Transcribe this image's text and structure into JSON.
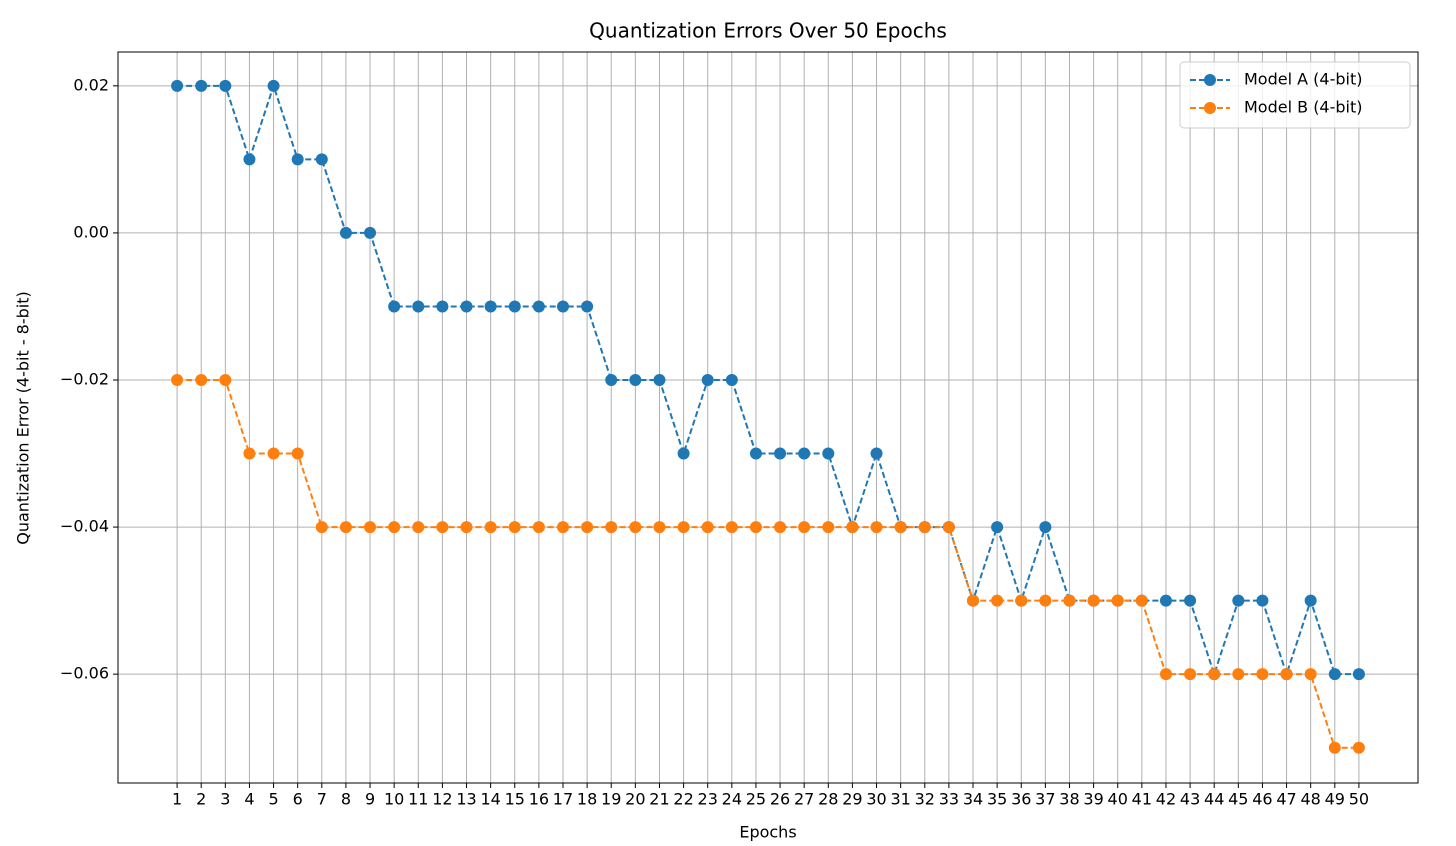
{
  "chart_data": {
    "type": "line",
    "title": "Quantization Errors Over 50 Epochs",
    "xlabel": "Epochs",
    "ylabel": "Quantization Error (4-bit - 8-bit)",
    "x": [
      1,
      2,
      3,
      4,
      5,
      6,
      7,
      8,
      9,
      10,
      11,
      12,
      13,
      14,
      15,
      16,
      17,
      18,
      19,
      20,
      21,
      22,
      23,
      24,
      25,
      26,
      27,
      28,
      29,
      30,
      31,
      32,
      33,
      34,
      35,
      36,
      37,
      38,
      39,
      40,
      41,
      42,
      43,
      44,
      45,
      46,
      47,
      48,
      49,
      50
    ],
    "series": [
      {
        "name": "Model A (4-bit)",
        "color": "#1f77b4",
        "values": [
          0.02,
          0.02,
          0.02,
          0.01,
          0.02,
          0.01,
          0.01,
          0.0,
          0.0,
          -0.01,
          -0.01,
          -0.01,
          -0.01,
          -0.01,
          -0.01,
          -0.01,
          -0.01,
          -0.01,
          -0.02,
          -0.02,
          -0.02,
          -0.03,
          -0.02,
          -0.02,
          -0.03,
          -0.03,
          -0.03,
          -0.03,
          -0.04,
          -0.03,
          -0.04,
          -0.04,
          -0.04,
          -0.05,
          -0.04,
          -0.05,
          -0.04,
          -0.05,
          -0.05,
          -0.05,
          -0.05,
          -0.05,
          -0.05,
          -0.06,
          -0.05,
          -0.05,
          -0.06,
          -0.05,
          -0.06,
          -0.06
        ]
      },
      {
        "name": "Model B (4-bit)",
        "color": "#ff7f0e",
        "values": [
          -0.02,
          -0.02,
          -0.02,
          -0.03,
          -0.03,
          -0.03,
          -0.04,
          -0.04,
          -0.04,
          -0.04,
          -0.04,
          -0.04,
          -0.04,
          -0.04,
          -0.04,
          -0.04,
          -0.04,
          -0.04,
          -0.04,
          -0.04,
          -0.04,
          -0.04,
          -0.04,
          -0.04,
          -0.04,
          -0.04,
          -0.04,
          -0.04,
          -0.04,
          -0.04,
          -0.04,
          -0.04,
          -0.04,
          -0.05,
          -0.05,
          -0.05,
          -0.05,
          -0.05,
          -0.05,
          -0.05,
          -0.05,
          -0.06,
          -0.06,
          -0.06,
          -0.06,
          -0.06,
          -0.06,
          -0.06,
          -0.07,
          -0.07
        ]
      }
    ],
    "xlim": [
      -1.45,
      52.45
    ],
    "ylim": [
      -0.0748,
      0.0246
    ],
    "xticks": [
      1,
      2,
      3,
      4,
      5,
      6,
      7,
      8,
      9,
      10,
      11,
      12,
      13,
      14,
      15,
      16,
      17,
      18,
      19,
      20,
      21,
      22,
      23,
      24,
      25,
      26,
      27,
      28,
      29,
      30,
      31,
      32,
      33,
      34,
      35,
      36,
      37,
      38,
      39,
      40,
      41,
      42,
      43,
      44,
      45,
      46,
      47,
      48,
      49,
      50
    ],
    "yticks": [
      0.02,
      {
        "value": 0.0,
        "label": "0.00"
      },
      {
        "value": -0.02,
        "label": "−0.02"
      },
      {
        "value": -0.04,
        "label": "−0.04"
      },
      {
        "value": -0.06,
        "label": "−0.06"
      }
    ],
    "grid": true,
    "legend": "upper right"
  }
}
